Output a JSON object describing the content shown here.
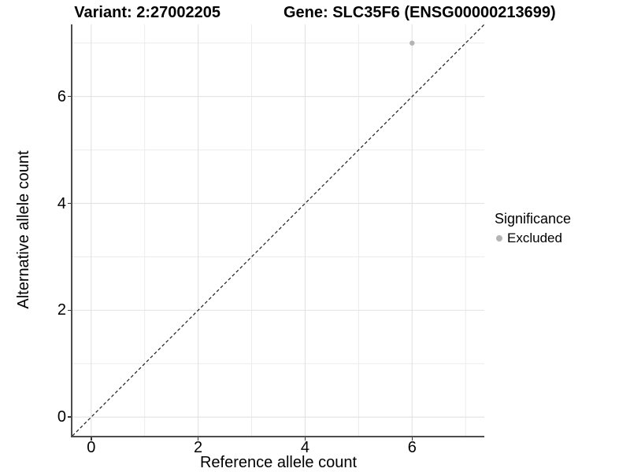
{
  "title": {
    "part1": "Variant: 2:27002205",
    "part2": "Gene: SLC35F6 (ENSG00000213699)"
  },
  "chart_data": {
    "type": "scatter",
    "title": "Variant: 2:27002205   Gene: SLC35F6 (ENSG00000213699)",
    "xlabel": "Reference allele count",
    "ylabel": "Alternative allele count",
    "xlim": [
      -0.35,
      7.35
    ],
    "ylim": [
      -0.35,
      7.35
    ],
    "x_ticks": [
      0,
      2,
      4,
      6
    ],
    "y_ticks": [
      0,
      2,
      4,
      6
    ],
    "x_minor_ticks": [
      1,
      3,
      5,
      7
    ],
    "y_minor_ticks": [
      1,
      3,
      5,
      7
    ],
    "grid": true,
    "points": [
      {
        "x": 6,
        "y": 7,
        "series": "Excluded"
      }
    ],
    "reference_line": {
      "type": "identity y=x",
      "style": "dashed",
      "color": "#1a1a1a"
    },
    "legend": {
      "title": "Significance",
      "position": "right",
      "entries": [
        {
          "label": "Excluded",
          "color": "#b4b4b4"
        }
      ]
    }
  },
  "colors": {
    "background": "#ffffff",
    "grid_major": "#e2e2e2",
    "grid_minor": "#ececec",
    "axis_line": "#4d4d4d",
    "tick_mark": "#333333",
    "text": "#000000",
    "point": "#b4b4b4"
  }
}
